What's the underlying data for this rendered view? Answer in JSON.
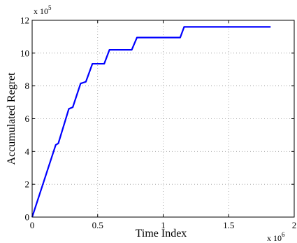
{
  "chart_data": {
    "type": "line",
    "xlabel": "Time Index",
    "ylabel": "Accumulated Regret",
    "x_multiplier_label": "x 10",
    "x_multiplier_exp": "6",
    "y_multiplier_label": "x 10",
    "y_multiplier_exp": "5",
    "xlim": [
      0,
      2
    ],
    "ylim": [
      0,
      12
    ],
    "x_ticks": [
      0,
      0.5,
      1,
      1.5,
      2
    ],
    "x_tick_labels": [
      "0",
      "0.5",
      "1",
      "1.5",
      "2"
    ],
    "y_ticks": [
      0,
      2,
      4,
      6,
      8,
      10,
      12
    ],
    "y_tick_labels": [
      "0",
      "2",
      "4",
      "6",
      "8",
      "10",
      "12"
    ],
    "grid": true,
    "line_color": "#0000ff",
    "series": [
      {
        "x": [
          0,
          0.18,
          0.2,
          0.28,
          0.31,
          0.37,
          0.41,
          0.46,
          0.55,
          0.59,
          0.76,
          0.8,
          1.13,
          1.16,
          1.82
        ],
        "y": [
          0,
          4.4,
          4.5,
          6.6,
          6.7,
          8.15,
          8.25,
          9.35,
          9.35,
          10.2,
          10.2,
          10.95,
          10.95,
          11.6,
          11.6
        ]
      }
    ]
  }
}
